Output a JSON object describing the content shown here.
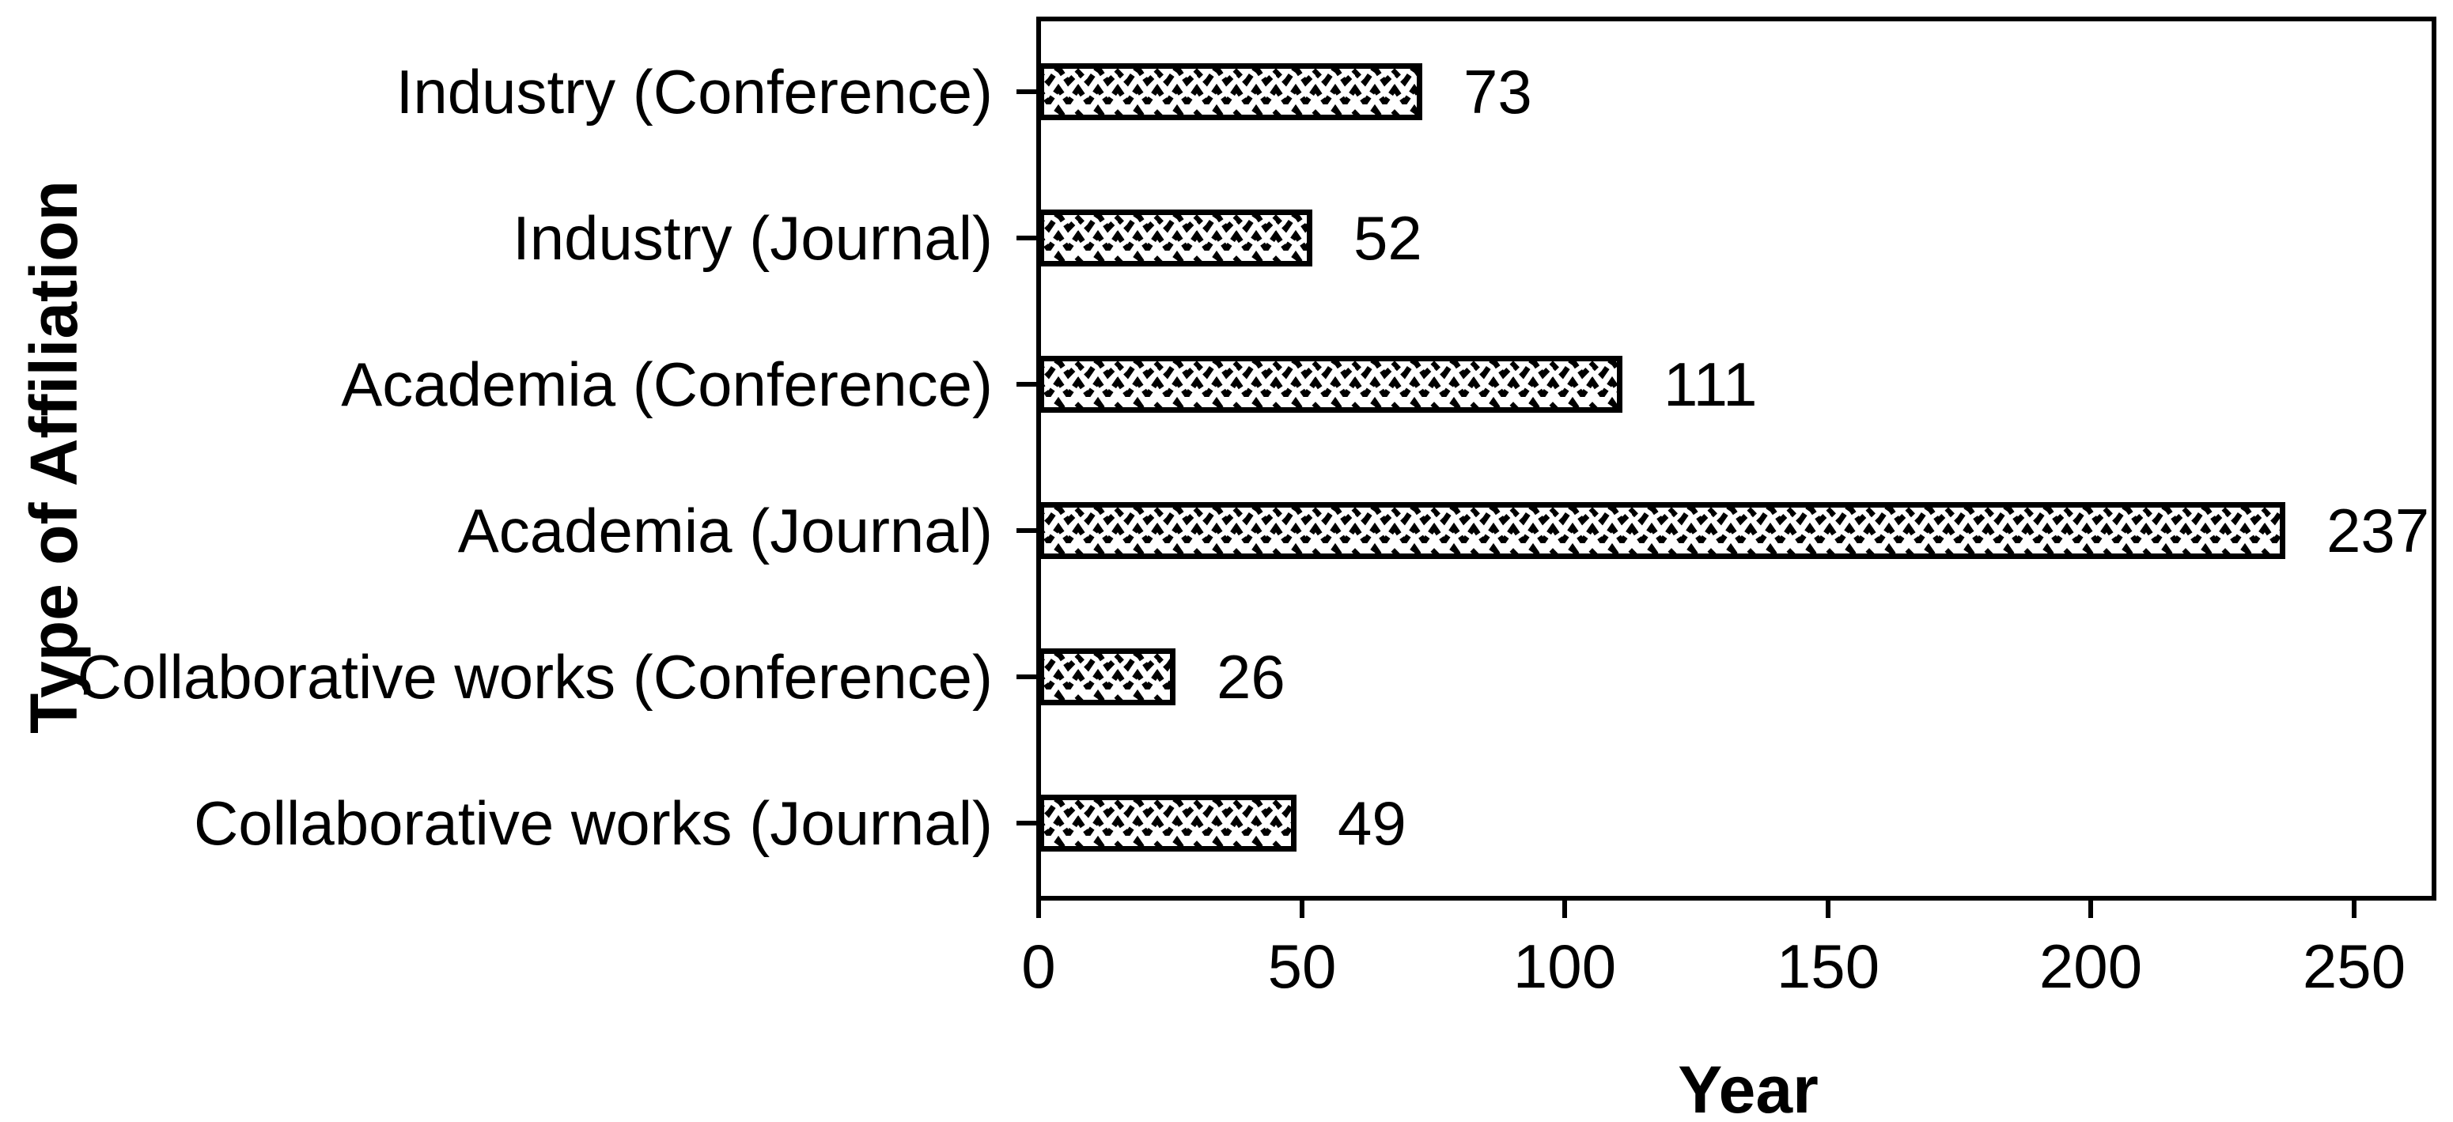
{
  "figure": {
    "background": "#ffffff",
    "ink_color": "#000000"
  },
  "chart_data": {
    "type": "bar",
    "orientation": "horizontal",
    "categories": [
      "Industry (Conference)",
      "Industry (Journal)",
      "Academia (Conference)",
      "Academia (Journal)",
      "Collaborative works (Conference)",
      "Collaborative works (Journal)"
    ],
    "values": [
      73,
      52,
      111,
      237,
      26,
      49
    ],
    "data_labels": [
      73,
      52,
      111,
      237,
      26,
      49
    ],
    "xlabel": "Year",
    "ylabel": "Type of Affiliation",
    "x_ticks": [
      0,
      50,
      100,
      150,
      200,
      250
    ],
    "xlim": [
      0,
      265
    ],
    "bar_fill": "zigzag-wave-hatch",
    "bar_border_color": "#000000",
    "grid": false,
    "legend": false,
    "title": ""
  }
}
